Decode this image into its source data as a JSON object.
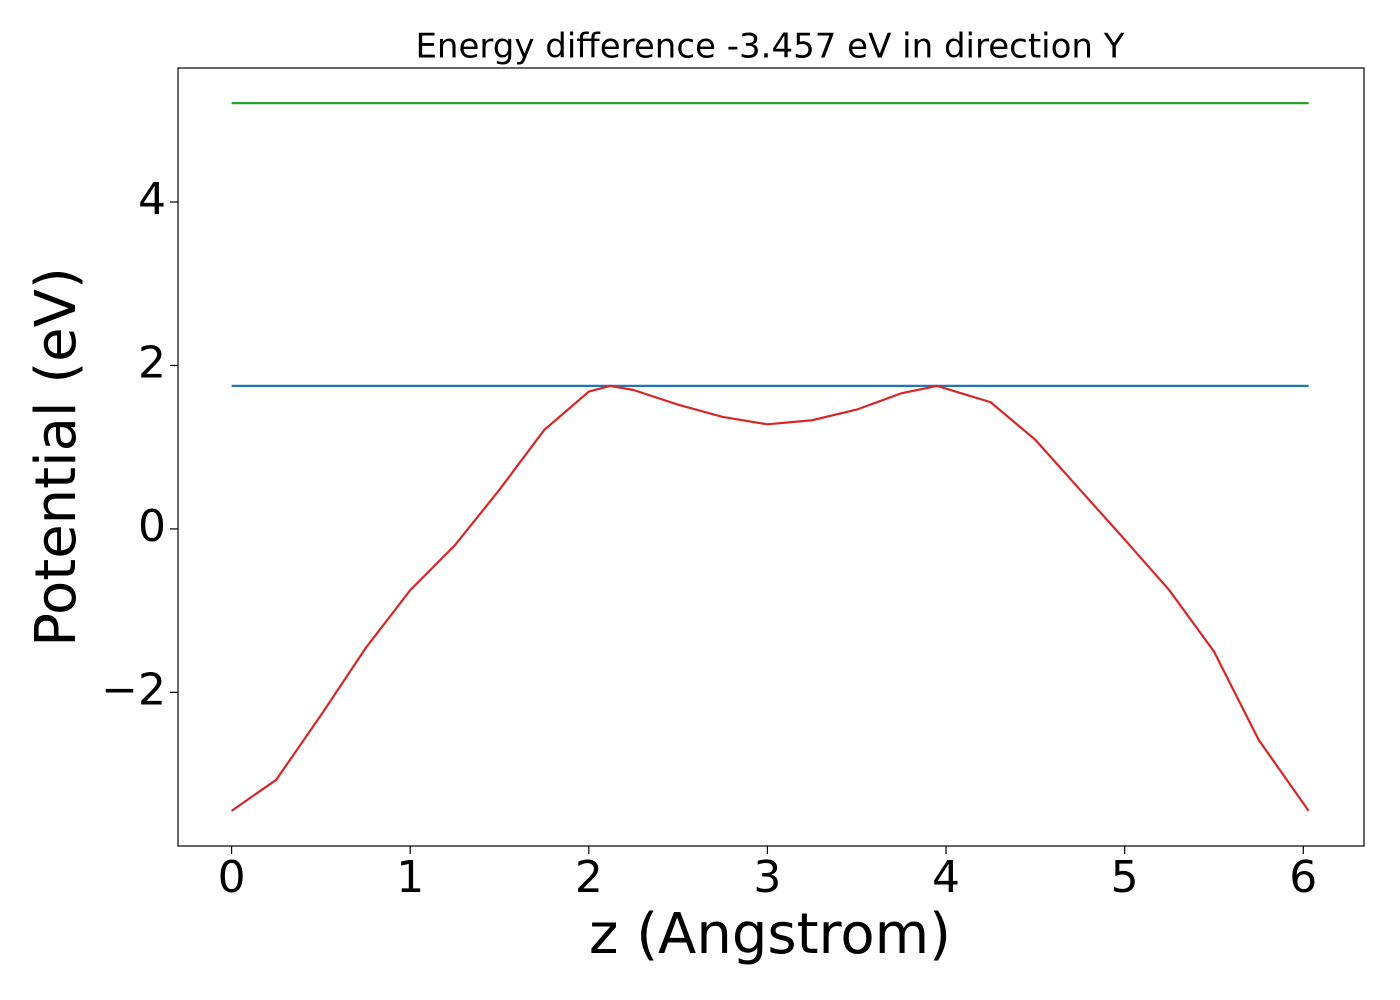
{
  "chart_data": {
    "type": "line",
    "title": "Energy difference -3.457 eV in direction Y",
    "xlabel": "z (Angstrom)",
    "ylabel": "Potential (eV)",
    "xlim": [
      -0.3,
      6.34
    ],
    "ylim": [
      -3.88,
      5.64
    ],
    "xticks": [
      0,
      1,
      2,
      3,
      4,
      5,
      6
    ],
    "yticks": [
      {
        "value": -2,
        "label": "−2"
      },
      0,
      2,
      4
    ],
    "series": [
      {
        "color": "#2ca02c",
        "x": [
          0,
          6.03
        ],
        "values": [
          5.21,
          5.21
        ]
      },
      {
        "color": "#1f77b4",
        "x": [
          0,
          6.03
        ],
        "values": [
          1.75,
          1.75
        ]
      },
      {
        "color": "#d62728",
        "x": [
          0,
          0.25,
          0.5,
          0.75,
          1.0,
          1.25,
          1.5,
          1.75,
          2.0,
          2.12,
          2.25,
          2.5,
          2.75,
          3.0,
          3.25,
          3.5,
          3.75,
          3.95,
          4.25,
          4.5,
          4.75,
          5.0,
          5.25,
          5.5,
          5.75,
          6.03
        ],
        "values": [
          -3.45,
          -3.07,
          -2.28,
          -1.46,
          -0.75,
          -0.2,
          0.48,
          1.21,
          1.68,
          1.75,
          1.7,
          1.52,
          1.37,
          1.28,
          1.33,
          1.46,
          1.66,
          1.75,
          1.55,
          1.09,
          0.48,
          -0.13,
          -0.75,
          -1.5,
          -2.58,
          -3.45
        ]
      }
    ]
  }
}
